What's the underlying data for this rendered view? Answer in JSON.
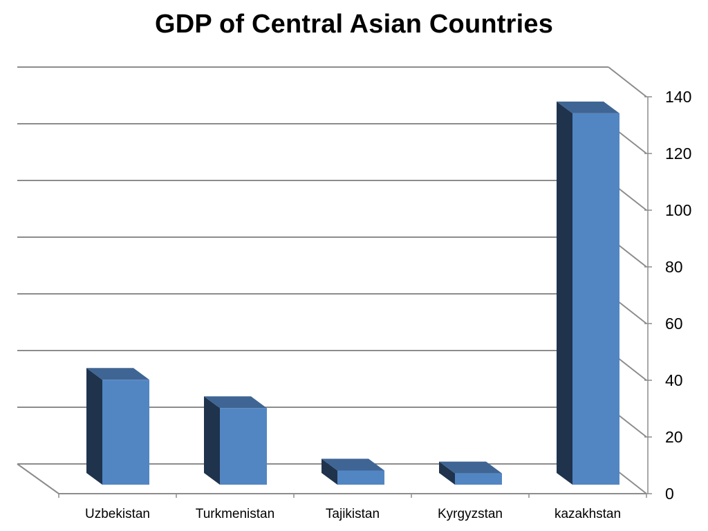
{
  "chart_data": {
    "type": "bar",
    "style": "3d-column",
    "title": "GDP of Central Asian Countries",
    "xlabel": "",
    "ylabel": "",
    "categories": [
      "Uzbekistan",
      "Turkmenistan",
      "Tajikistan",
      "Kyrgyzstan",
      "kazakhstan"
    ],
    "values": [
      37,
      27,
      5,
      4,
      131
    ],
    "ylim": [
      0,
      140
    ],
    "yticks": [
      0,
      20,
      40,
      60,
      80,
      100,
      120,
      140
    ],
    "grid": true,
    "legend": "none",
    "y_axis_side": "right",
    "colors": {
      "bar_front": "#5286c3",
      "bar_side": "#1f334d",
      "bar_top": "#3f6594",
      "grid": "#8c8c8c"
    }
  }
}
